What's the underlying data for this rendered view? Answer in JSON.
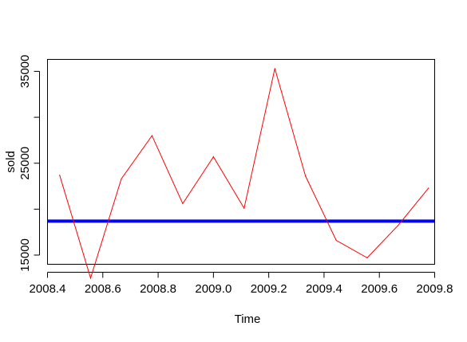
{
  "chart_data": {
    "type": "line",
    "xlabel": "Time",
    "ylabel": "sold",
    "xlim": [
      2008.4,
      2009.8
    ],
    "ylim": [
      14000,
      36300
    ],
    "x_ticks": [
      2008.4,
      2008.6,
      2008.8,
      2009.0,
      2009.2,
      2009.4,
      2009.6,
      2009.8
    ],
    "x_tick_labels": [
      "2008.4",
      "2008.6",
      "2008.8",
      "2009.0",
      "2009.2",
      "2009.4",
      "2009.6",
      "2009.8"
    ],
    "y_ticks": [
      15000,
      25000,
      35000
    ],
    "y_tick_labels": [
      "15000",
      "25000",
      "35000"
    ],
    "y_minor_ticks": [
      20000,
      30000
    ],
    "series": [
      {
        "color": "#ff0000",
        "x": [
          2008.444,
          2008.556,
          2008.667,
          2008.778,
          2008.889,
          2009.0,
          2009.111,
          2009.222,
          2009.333,
          2009.444,
          2009.556,
          2009.667,
          2009.778
        ],
        "values": [
          23700,
          12500,
          23300,
          28000,
          20600,
          25700,
          20100,
          35300,
          23600,
          16600,
          14700,
          18200,
          22300
        ]
      }
    ],
    "reference_lines": [
      {
        "orientation": "horizontal",
        "value": 18700,
        "color": "#0000ff"
      }
    ],
    "grid": false,
    "legend": "none"
  }
}
